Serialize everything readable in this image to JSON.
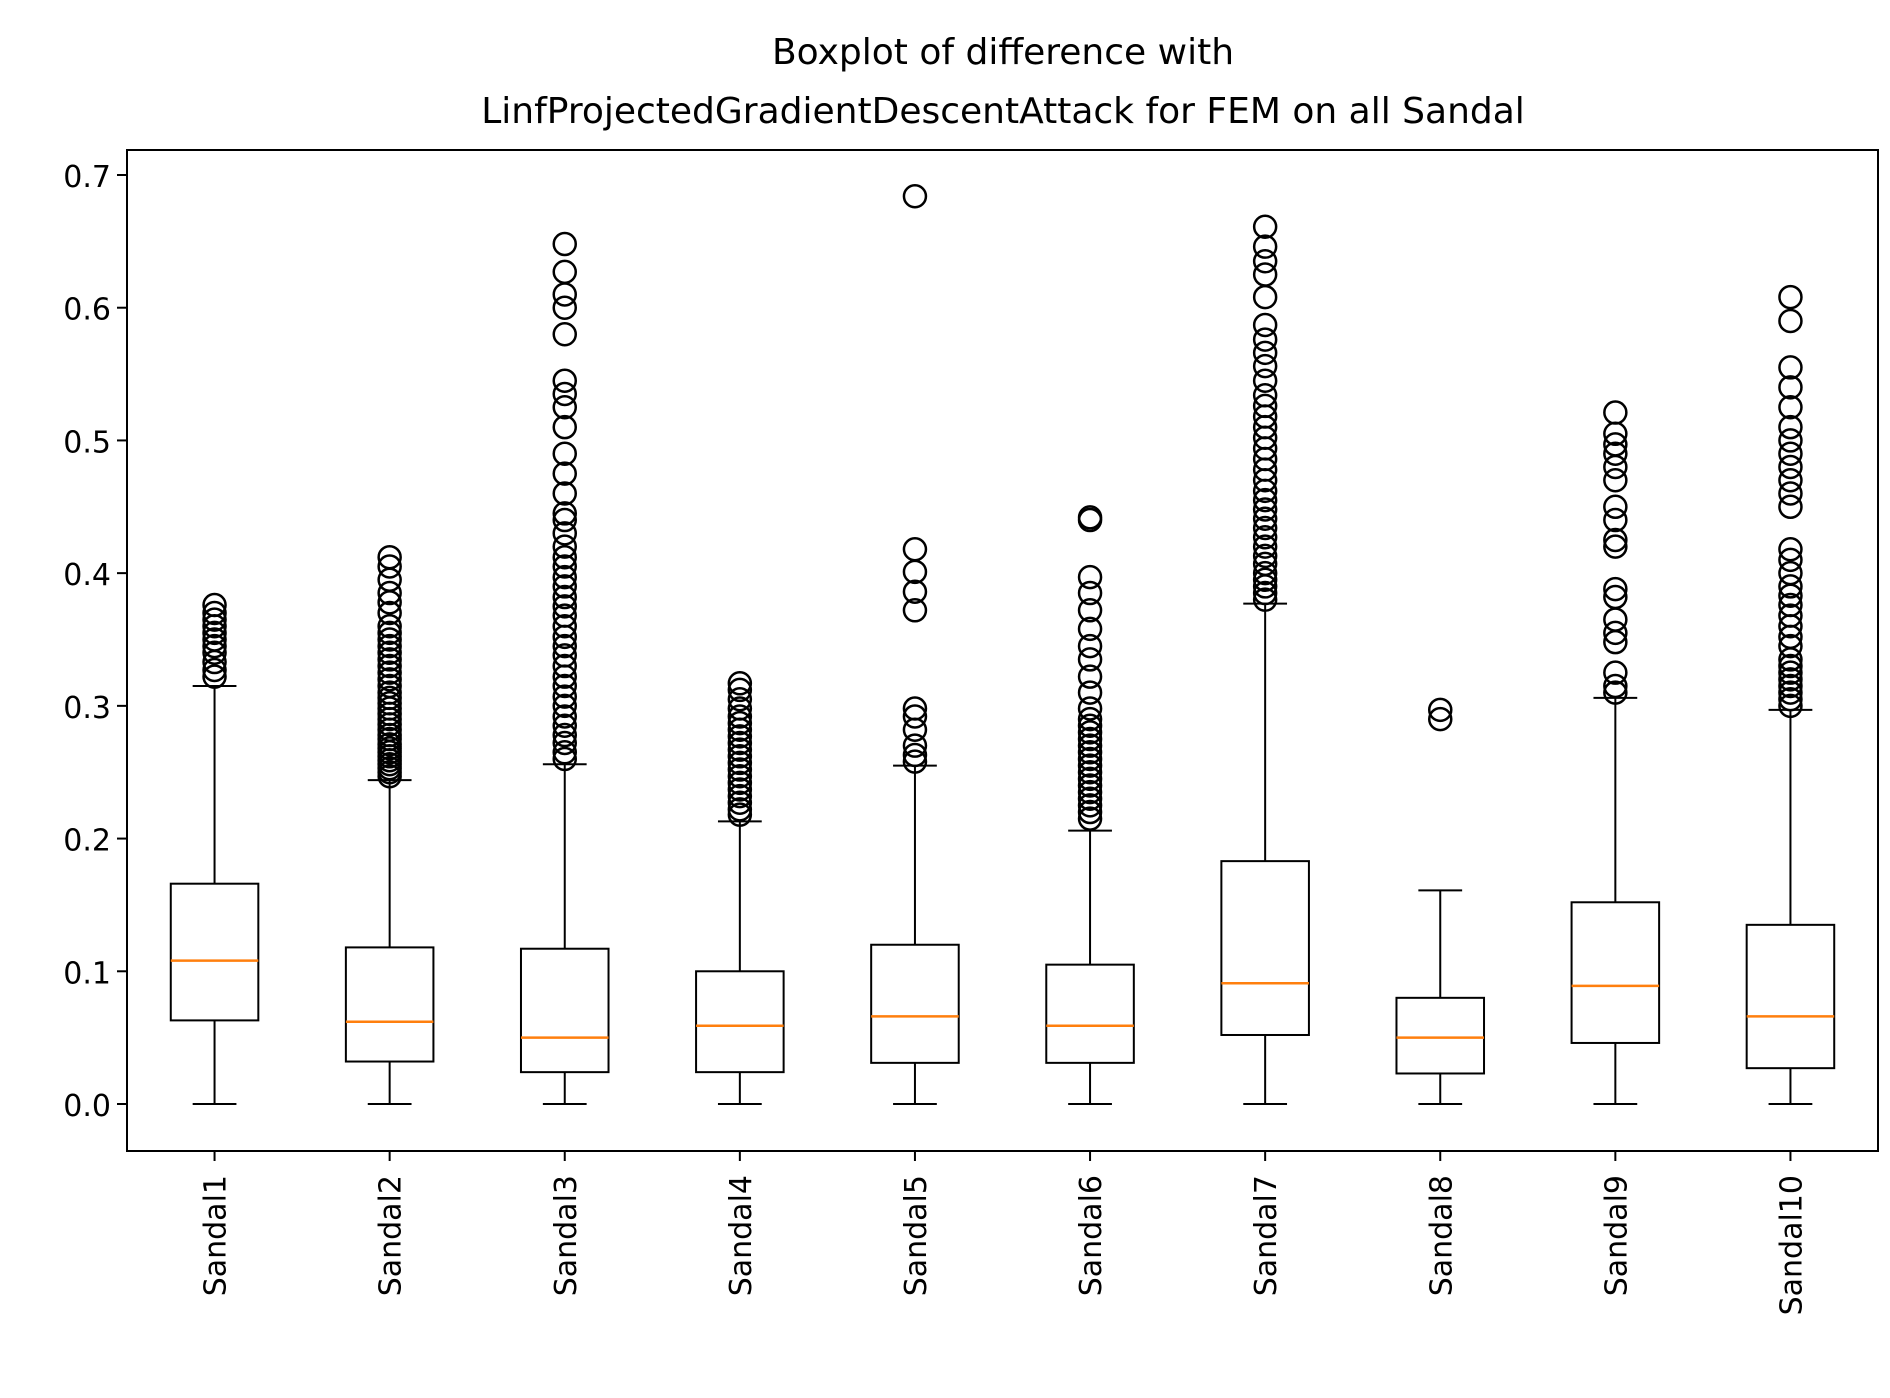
{
  "chart_data": {
    "type": "boxplot",
    "title_line1": "Boxplot of difference with",
    "title_line2": "LinfProjectedGradientDescentAttack for FEM on all Sandal",
    "xlabel": "",
    "ylabel": "",
    "ylim": [
      -0.034,
      0.72
    ],
    "yticks": [
      0.0,
      0.1,
      0.2,
      0.3,
      0.4,
      0.5,
      0.6,
      0.7
    ],
    "ytick_labels": [
      "0.0",
      "0.1",
      "0.2",
      "0.3",
      "0.4",
      "0.5",
      "0.6",
      "0.7"
    ],
    "grid": false,
    "colors": {
      "box": "#000000",
      "median": "#ff7f0e",
      "flier": "#000000",
      "background": "#ffffff"
    },
    "categories": [
      "Sandal1",
      "Sandal2",
      "Sandal3",
      "Sandal4",
      "Sandal5",
      "Sandal6",
      "Sandal7",
      "Sandal8",
      "Sandal9",
      "Sandal10"
    ],
    "boxes": [
      {
        "name": "Sandal1",
        "whisker_low": 0.0,
        "q1": 0.063,
        "median": 0.108,
        "q3": 0.166,
        "whisker_high": 0.315,
        "fliers": [
          0.322,
          0.327,
          0.333,
          0.34,
          0.345,
          0.35,
          0.355,
          0.36,
          0.365,
          0.37,
          0.376
        ]
      },
      {
        "name": "Sandal2",
        "whisker_low": 0.0,
        "q1": 0.032,
        "median": 0.062,
        "q3": 0.118,
        "whisker_high": 0.244,
        "fliers": [
          0.247,
          0.25,
          0.253,
          0.256,
          0.259,
          0.262,
          0.265,
          0.268,
          0.271,
          0.275,
          0.278,
          0.282,
          0.286,
          0.29,
          0.294,
          0.298,
          0.302,
          0.306,
          0.31,
          0.315,
          0.32,
          0.325,
          0.33,
          0.335,
          0.34,
          0.345,
          0.35,
          0.355,
          0.36,
          0.37,
          0.378,
          0.385,
          0.395,
          0.405,
          0.412
        ]
      },
      {
        "name": "Sandal3",
        "whisker_low": 0.0,
        "q1": 0.024,
        "median": 0.05,
        "q3": 0.117,
        "whisker_high": 0.256,
        "fliers": [
          0.26,
          0.265,
          0.272,
          0.278,
          0.285,
          0.292,
          0.3,
          0.307,
          0.315,
          0.322,
          0.33,
          0.338,
          0.345,
          0.352,
          0.36,
          0.368,
          0.375,
          0.382,
          0.39,
          0.397,
          0.405,
          0.412,
          0.42,
          0.43,
          0.44,
          0.445,
          0.46,
          0.475,
          0.49,
          0.51,
          0.525,
          0.535,
          0.545,
          0.58,
          0.6,
          0.61,
          0.627,
          0.648
        ]
      },
      {
        "name": "Sandal4",
        "whisker_low": 0.0,
        "q1": 0.024,
        "median": 0.059,
        "q3": 0.1,
        "whisker_high": 0.213,
        "fliers": [
          0.218,
          0.222,
          0.227,
          0.232,
          0.237,
          0.242,
          0.247,
          0.252,
          0.257,
          0.262,
          0.267,
          0.272,
          0.277,
          0.282,
          0.287,
          0.292,
          0.298,
          0.305,
          0.312,
          0.317
        ]
      },
      {
        "name": "Sandal5",
        "whisker_low": 0.0,
        "q1": 0.031,
        "median": 0.066,
        "q3": 0.12,
        "whisker_high": 0.255,
        "fliers": [
          0.258,
          0.263,
          0.27,
          0.282,
          0.292,
          0.298,
          0.372,
          0.386,
          0.401,
          0.418,
          0.684
        ]
      },
      {
        "name": "Sandal6",
        "whisker_low": 0.0,
        "q1": 0.031,
        "median": 0.059,
        "q3": 0.105,
        "whisker_high": 0.206,
        "fliers": [
          0.215,
          0.22,
          0.225,
          0.23,
          0.235,
          0.24,
          0.245,
          0.25,
          0.255,
          0.26,
          0.265,
          0.27,
          0.275,
          0.28,
          0.285,
          0.29,
          0.298,
          0.31,
          0.322,
          0.335,
          0.345,
          0.358,
          0.372,
          0.385,
          0.397,
          0.44,
          0.442
        ]
      },
      {
        "name": "Sandal7",
        "whisker_low": 0.0,
        "q1": 0.052,
        "median": 0.091,
        "q3": 0.183,
        "whisker_high": 0.377,
        "fliers": [
          0.38,
          0.385,
          0.39,
          0.395,
          0.4,
          0.407,
          0.413,
          0.42,
          0.427,
          0.434,
          0.441,
          0.448,
          0.455,
          0.462,
          0.47,
          0.478,
          0.486,
          0.494,
          0.502,
          0.51,
          0.518,
          0.526,
          0.534,
          0.545,
          0.556,
          0.566,
          0.576,
          0.587,
          0.608,
          0.625,
          0.635,
          0.646,
          0.661
        ]
      },
      {
        "name": "Sandal8",
        "whisker_low": 0.0,
        "q1": 0.023,
        "median": 0.05,
        "q3": 0.08,
        "whisker_high": 0.161,
        "fliers": [
          0.29,
          0.297
        ]
      },
      {
        "name": "Sandal9",
        "whisker_low": 0.0,
        "q1": 0.046,
        "median": 0.089,
        "q3": 0.152,
        "whisker_high": 0.306,
        "fliers": [
          0.31,
          0.315,
          0.325,
          0.348,
          0.355,
          0.365,
          0.382,
          0.388,
          0.42,
          0.425,
          0.44,
          0.45,
          0.47,
          0.48,
          0.49,
          0.497,
          0.505,
          0.521
        ]
      },
      {
        "name": "Sandal10",
        "whisker_low": 0.0,
        "q1": 0.027,
        "median": 0.066,
        "q3": 0.135,
        "whisker_high": 0.297,
        "fliers": [
          0.3,
          0.305,
          0.31,
          0.315,
          0.32,
          0.325,
          0.33,
          0.335,
          0.345,
          0.352,
          0.36,
          0.368,
          0.376,
          0.383,
          0.39,
          0.4,
          0.41,
          0.418,
          0.45,
          0.46,
          0.47,
          0.48,
          0.49,
          0.5,
          0.51,
          0.525,
          0.54,
          0.555,
          0.59,
          0.608
        ]
      }
    ]
  }
}
